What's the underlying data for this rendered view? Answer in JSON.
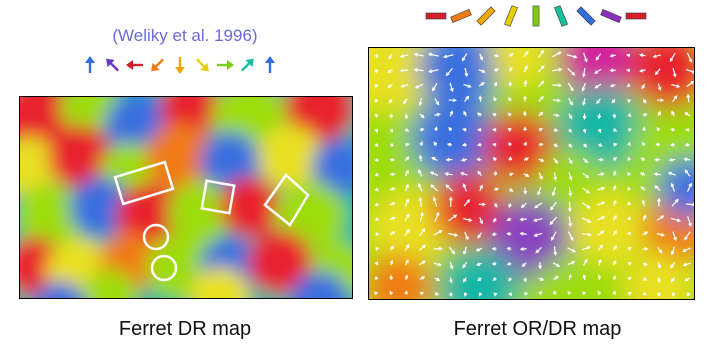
{
  "left_panel": {
    "citation": "(Weliky et al. 1996)",
    "caption": "Ferret DR map",
    "direction_arrows": [
      {
        "icon": "arrow-up-icon",
        "color": "#2f6fe0",
        "angle_deg": 0
      },
      {
        "icon": "arrow-up-left-icon",
        "color": "#6a35c9",
        "angle_deg": -45
      },
      {
        "icon": "arrow-left-icon",
        "color": "#d41e2a",
        "angle_deg": -90
      },
      {
        "icon": "arrow-down-left-icon",
        "color": "#f07a18",
        "angle_deg": -135
      },
      {
        "icon": "arrow-down-icon",
        "color": "#f2a800",
        "angle_deg": 180
      },
      {
        "icon": "arrow-down-right-icon",
        "color": "#e8d000",
        "angle_deg": 135
      },
      {
        "icon": "arrow-right-icon",
        "color": "#7ccc10",
        "angle_deg": 90
      },
      {
        "icon": "arrow-up-right-icon",
        "color": "#16bfa0",
        "angle_deg": 45
      },
      {
        "icon": "arrow-up-icon",
        "color": "#2f6fe0",
        "angle_deg": 0
      }
    ],
    "overlay_shapes": [
      "rectangle-outline",
      "square-outline",
      "diamond-outline",
      "circle-outline",
      "circle-outline"
    ]
  },
  "right_panel": {
    "caption": "Ferret OR/DR map",
    "orientation_bars": [
      {
        "color": "#d41e2a",
        "angle_deg": 90
      },
      {
        "color": "#f07a18",
        "angle_deg": 67
      },
      {
        "color": "#f2a800",
        "angle_deg": 45
      },
      {
        "color": "#e8d000",
        "angle_deg": 22
      },
      {
        "color": "#7ccc10",
        "angle_deg": 0
      },
      {
        "color": "#16bfa0",
        "angle_deg": -22
      },
      {
        "color": "#2f6fe0",
        "angle_deg": -45
      },
      {
        "color": "#8a2fc0",
        "angle_deg": -67
      },
      {
        "color": "#d41e2a",
        "angle_deg": -90
      }
    ]
  },
  "colors": {
    "red": "#e8232e",
    "orange": "#f07a18",
    "yellow": "#e8e020",
    "green": "#9ddc10",
    "teal": "#19b6a6",
    "blue": "#3b6fe0",
    "purple": "#8a3fc0",
    "magenta": "#d2209c"
  }
}
